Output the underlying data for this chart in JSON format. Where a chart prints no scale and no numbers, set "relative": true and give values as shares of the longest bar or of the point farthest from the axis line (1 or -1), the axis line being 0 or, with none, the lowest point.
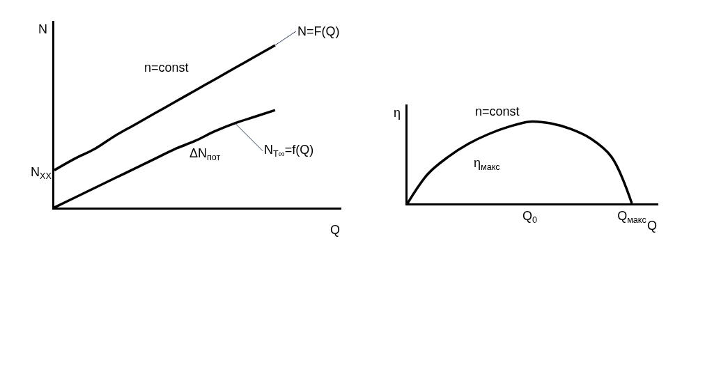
{
  "chart_data": [
    {
      "type": "line",
      "relative": true,
      "xlabel": "Q",
      "ylabel": "N",
      "tick_labels": false,
      "categories": [
        null,
        null,
        null,
        null,
        null,
        null,
        null,
        null,
        null,
        null,
        null,
        null,
        null,
        null,
        null
      ],
      "series": [
        {
          "name": "N=F(Q)",
          "color": "#000000",
          "values": [
            0.23,
            0.3,
            0.36,
            0.44,
            0.51,
            0.58,
            0.65,
            0.72,
            0.79,
            0.86,
            0.93,
            1.0,
            null,
            null,
            null
          ]
        },
        {
          "name": "N$_{T∞}$=f(Q)",
          "color": "#000000",
          "values": [
            0,
            0.06,
            0.12,
            0.18,
            0.24,
            0.3,
            0.36,
            0.41,
            0.47,
            0.52,
            0.56,
            0.6,
            null,
            null,
            null
          ]
        }
      ],
      "annotations": [
        "n=const",
        "ΔN$_{пот}$",
        "N$_{XX}$"
      ]
    },
    {
      "type": "line",
      "relative": true,
      "xlabel": "Q",
      "ylabel": "η",
      "tick_labels": "x",
      "categories": [
        null,
        null,
        null,
        null,
        null,
        null,
        "Q$_{0}$",
        null,
        null,
        null,
        null,
        "Q$_{макс}$",
        null
      ],
      "series": [
        {
          "color": "#000000",
          "values": [
            0,
            0.36,
            0.57,
            0.73,
            0.85,
            0.94,
            1.0,
            0.98,
            0.91,
            0.79,
            0.57,
            0,
            null
          ]
        }
      ],
      "annotations": [
        "n=const",
        "η$_{макс}$"
      ]
    }
  ]
}
